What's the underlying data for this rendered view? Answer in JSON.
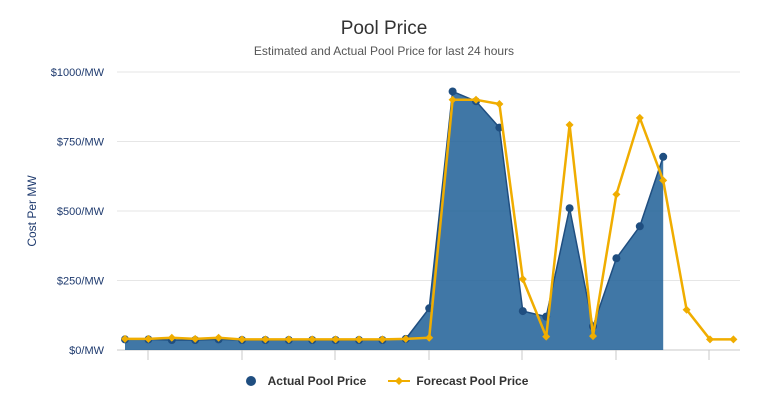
{
  "colors": {
    "actual": "#1f4e80",
    "actual_fill": "#1f5f96",
    "forecast": "#f0ad00",
    "grid": "#e6e6e6",
    "axis_text": "#1e3a6e"
  },
  "chart_data": {
    "type": "area",
    "title": "Pool Price",
    "subtitle": "Estimated and Actual Pool Price for last 24 hours",
    "xlabel": "",
    "ylabel": "Cost Per MW",
    "ylim": [
      0,
      1000
    ],
    "y_ticks": [
      0,
      250,
      500,
      750,
      1000
    ],
    "y_tick_labels": [
      "$0/MW",
      "$250/MW",
      "$500/MW",
      "$750/MW",
      "$1000/MW"
    ],
    "grid": true,
    "legend_position": "bottom",
    "x": [
      0,
      1,
      2,
      3,
      4,
      5,
      6,
      7,
      8,
      9,
      10,
      11,
      12,
      13,
      14,
      15,
      16,
      17,
      18,
      19,
      20,
      21,
      22,
      23,
      24,
      25,
      26
    ],
    "series": [
      {
        "name": "Actual Pool Price",
        "type": "area",
        "values": [
          38,
          38,
          36,
          36,
          38,
          36,
          36,
          36,
          36,
          36,
          36,
          36,
          40,
          150,
          930,
          895,
          800,
          140,
          120,
          510,
          85,
          330,
          445,
          695,
          null,
          null,
          null
        ]
      },
      {
        "name": "Forecast Pool Price",
        "type": "line",
        "values": [
          40,
          40,
          44,
          40,
          44,
          38,
          38,
          38,
          38,
          38,
          38,
          38,
          40,
          44,
          900,
          900,
          885,
          255,
          48,
          810,
          50,
          560,
          835,
          610,
          145,
          38,
          38
        ]
      }
    ]
  },
  "legend": {
    "actual_label": "Actual Pool Price",
    "forecast_label": "Forecast Pool Price"
  }
}
